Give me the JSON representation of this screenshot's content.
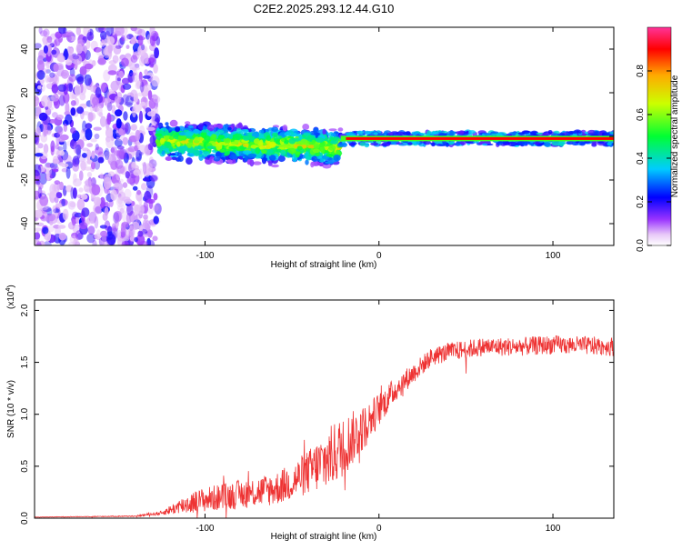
{
  "title": "C2E2.2025.293.12.44.G10",
  "chart_data": [
    {
      "type": "heatmap",
      "xlabel": "Height of straight line (km)",
      "ylabel": "Frequency (Hz)",
      "xlim": [
        -198,
        135
      ],
      "ylim": [
        -50,
        50
      ],
      "xticks": [
        -100,
        0,
        100
      ],
      "yticks": [
        -40,
        -20,
        0,
        20,
        40
      ],
      "colorbar": {
        "label": "Normalized spectral amplitude",
        "range": [
          0,
          1
        ],
        "ticks": [
          "0.0",
          "0.2",
          "0.4",
          "0.6",
          "0.8"
        ]
      },
      "features": {
        "noise_region_km": [
          -198,
          -127
        ],
        "scattered_signal_km": [
          -127,
          -22
        ],
        "scattered_signal_freq_hz": [
          -15,
          8
        ],
        "carrier_km": [
          -22,
          135
        ],
        "carrier_freq_hz": -1
      }
    },
    {
      "type": "line",
      "xlabel": "Height of straight line (km)",
      "ylabel": "SNR (10 * v/v)",
      "y_multiplier": "(x10",
      "y_multiplier_exp": "4",
      "xlim": [
        -198,
        135
      ],
      "ylim": [
        0,
        2.1
      ],
      "xticks": [
        -100,
        0,
        100
      ],
      "yticks": [
        "0.0",
        "0.5",
        "1.0",
        "1.5",
        "2.0"
      ],
      "series": [
        {
          "name": "SNR",
          "color": "#ee3333",
          "x": [
            -198,
            -140,
            -125,
            -110,
            -100,
            -80,
            -60,
            -50,
            -40,
            -30,
            -20,
            -10,
            0,
            10,
            20,
            30,
            40,
            60,
            80,
            100,
            120,
            135
          ],
          "y": [
            0.01,
            0.02,
            0.05,
            0.14,
            0.18,
            0.23,
            0.28,
            0.35,
            0.45,
            0.56,
            0.7,
            0.85,
            1.05,
            1.25,
            1.4,
            1.55,
            1.6,
            1.65,
            1.65,
            1.67,
            1.66,
            1.65
          ],
          "noise_amplitude": [
            0.002,
            0.005,
            0.02,
            0.1,
            0.12,
            0.14,
            0.16,
            0.18,
            0.22,
            0.3,
            0.3,
            0.22,
            0.16,
            0.12,
            0.1,
            0.09,
            0.09,
            0.09,
            0.09,
            0.09,
            0.09,
            0.09
          ]
        }
      ]
    }
  ]
}
